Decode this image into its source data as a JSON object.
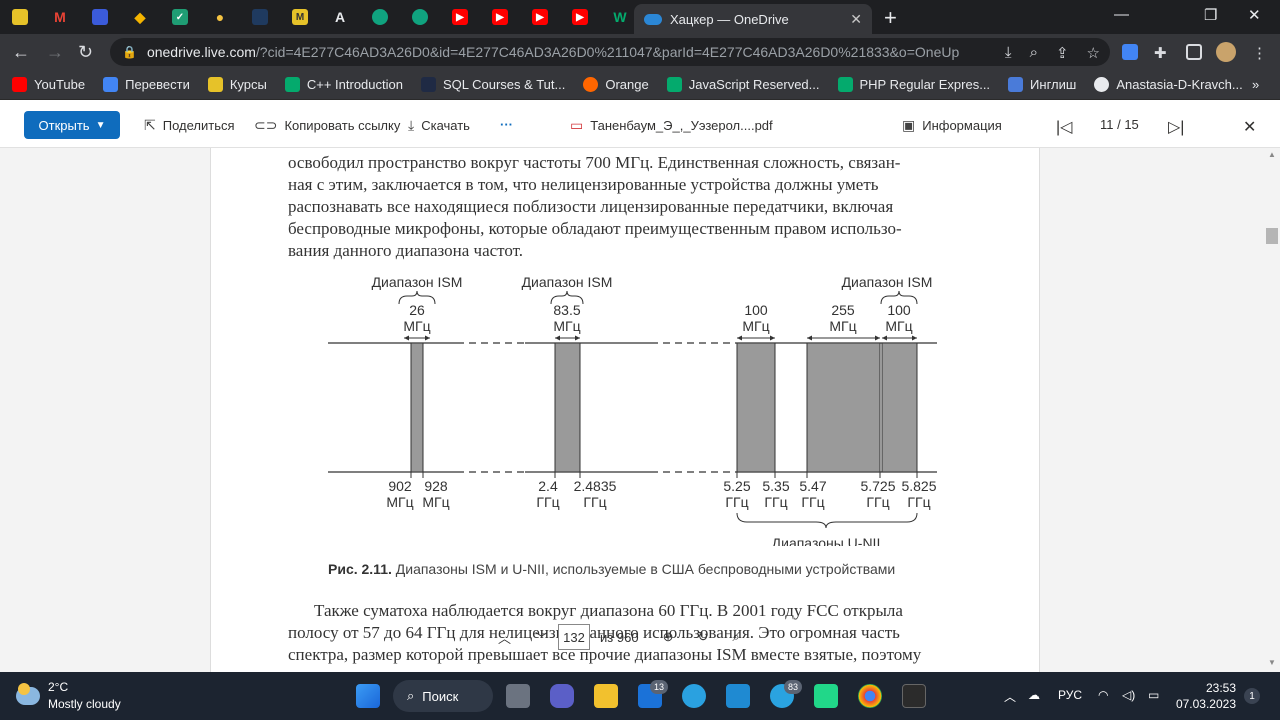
{
  "tabs": {
    "active_title": "Хацкер — OneDrive"
  },
  "address": {
    "host": "onedrive.live.com",
    "path": "/?cid=4E277C46AD3A26D0&id=4E277C46AD3A26D0%211047&parId=4E277C46AD3A26D0%21833&o=OneUp"
  },
  "bookmarks": [
    {
      "label": "YouTube",
      "color": "#ff0000"
    },
    {
      "label": "Перевести",
      "color": "#4285f4"
    },
    {
      "label": "Курсы",
      "color": "#e6c229"
    },
    {
      "label": "C++ Introduction",
      "color": "#04aa6d"
    },
    {
      "label": "SQL Courses & Tut...",
      "color": "#1f2a44"
    },
    {
      "label": "Orange",
      "color": "#ff6600"
    },
    {
      "label": "JavaScript Reserved...",
      "color": "#04aa6d"
    },
    {
      "label": "PHP Regular Expres...",
      "color": "#04aa6d"
    },
    {
      "label": "Инглиш",
      "color": "#4a7bd9"
    },
    {
      "label": "Anastasia-D-Kravch...",
      "color": "#e8eaed"
    }
  ],
  "toolbar": {
    "open_label": "Открыть",
    "share_label": "Поделиться",
    "copy_link_label": "Копировать ссылку",
    "download_label": "Скачать",
    "more_label": "···",
    "file_name": "Таненбаум_Э_,_Уэзерол....pdf",
    "info_label": "Информация",
    "page_counter": "11 / 15"
  },
  "document": {
    "paragraph_top": [
      "освободил пространство вокруг частоты 700 МГц. Единственная сложность, связан-",
      "ная с этим, заключается в том, что нелицензированные устройства должны уметь",
      "распознавать все находящиеся поблизости лицензированные передатчики, включая",
      "беспроводные микрофоны, которые обладают преимущественным правом использо-",
      "вания данного диапазона частот."
    ],
    "caption_bold": "Рис. 2.11.",
    "caption_text": " Диапазоны ISM и U-NII, используемые в США беспроводными устройствами",
    "paragraph_bottom": [
      "Также суматоха наблюдается вокруг диапазона 60 ГГц. В 2001 году FCC открыла",
      "полосу от 57 до 64 ГГц для нелицензированного использования. Это огромная часть",
      "спектра, размер которой превышает все прочие диапазоны ISM вместе взятые, поэтому"
    ]
  },
  "figure": {
    "ism_label": "Диапазон ISM",
    "unii_label": "Диапазоны U-NII",
    "widths": [
      {
        "value": "26",
        "unit": "МГц"
      },
      {
        "value": "83.5",
        "unit": "МГц"
      },
      {
        "value": "100",
        "unit": "МГц"
      },
      {
        "value": "255",
        "unit": "МГц"
      },
      {
        "value": "100",
        "unit": "МГц"
      }
    ],
    "ticks": [
      {
        "value": "902",
        "unit": "МГц"
      },
      {
        "value": "928",
        "unit": "МГц"
      },
      {
        "value": "2.4",
        "unit": "ГГц"
      },
      {
        "value": "2.4835",
        "unit": "ГГц"
      },
      {
        "value": "5.25",
        "unit": "ГГц"
      },
      {
        "value": "5.35",
        "unit": "ГГц"
      },
      {
        "value": "5.47",
        "unit": "ГГц"
      },
      {
        "value": "5.725",
        "unit": "ГГц"
      },
      {
        "value": "5.825",
        "unit": "ГГц"
      }
    ]
  },
  "pager": {
    "current": "132",
    "of_total": "из 960"
  },
  "taskbar": {
    "temperature": "2°C",
    "condition": "Mostly cloudy",
    "search_label": "Поиск",
    "language": "РУС",
    "time": "23:53",
    "date": "07.03.2023",
    "notifications": "1",
    "mail_badge": "13",
    "telegram_badge": "83"
  }
}
